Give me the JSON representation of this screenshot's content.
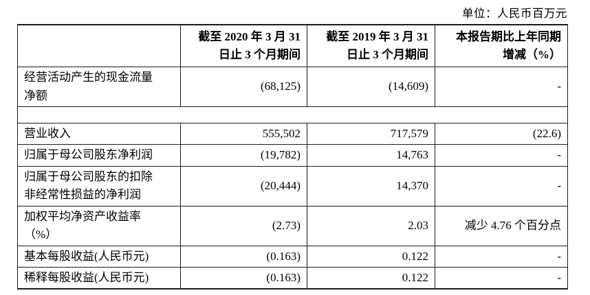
{
  "page": {
    "unit_label": "单位：人民币百万元"
  },
  "table": {
    "headers": {
      "corner": "",
      "period_2020": "截至 2020 年 3 月 31\n日止 3 个月期间",
      "period_2019": "截至 2019 年 3 月 31\n日止 3 个月期间",
      "change": "本报告期比上年同期\n增减（%）"
    },
    "rows": [
      {
        "label": "经营活动产生的现金流量\n净额",
        "v2020": "(68,125)",
        "v2019": "(14,609)",
        "change": "-"
      },
      {
        "label": "营业收入",
        "v2020": "555,502",
        "v2019": "717,579",
        "change": "(22.6)"
      },
      {
        "label": "归属于母公司股东净利润",
        "v2020": "(19,782)",
        "v2019": "14,763",
        "change": "-"
      },
      {
        "label": "归属于母公司股东的扣除\n非经常性损益的净利润",
        "v2020": "(20,444)",
        "v2019": "14,370",
        "change": "-"
      },
      {
        "label": "加权平均净资产收益率\n（%）",
        "v2020": "(2.73)",
        "v2019": "2.03",
        "change": "减少 4.76 个百分点"
      },
      {
        "label": "基本每股收益(人民币元)",
        "v2020": "(0.163)",
        "v2019": "0.122",
        "change": "-"
      },
      {
        "label": "稀释每股收益(人民币元)",
        "v2020": "(0.163)",
        "v2019": "0.122",
        "change": "-"
      }
    ]
  }
}
